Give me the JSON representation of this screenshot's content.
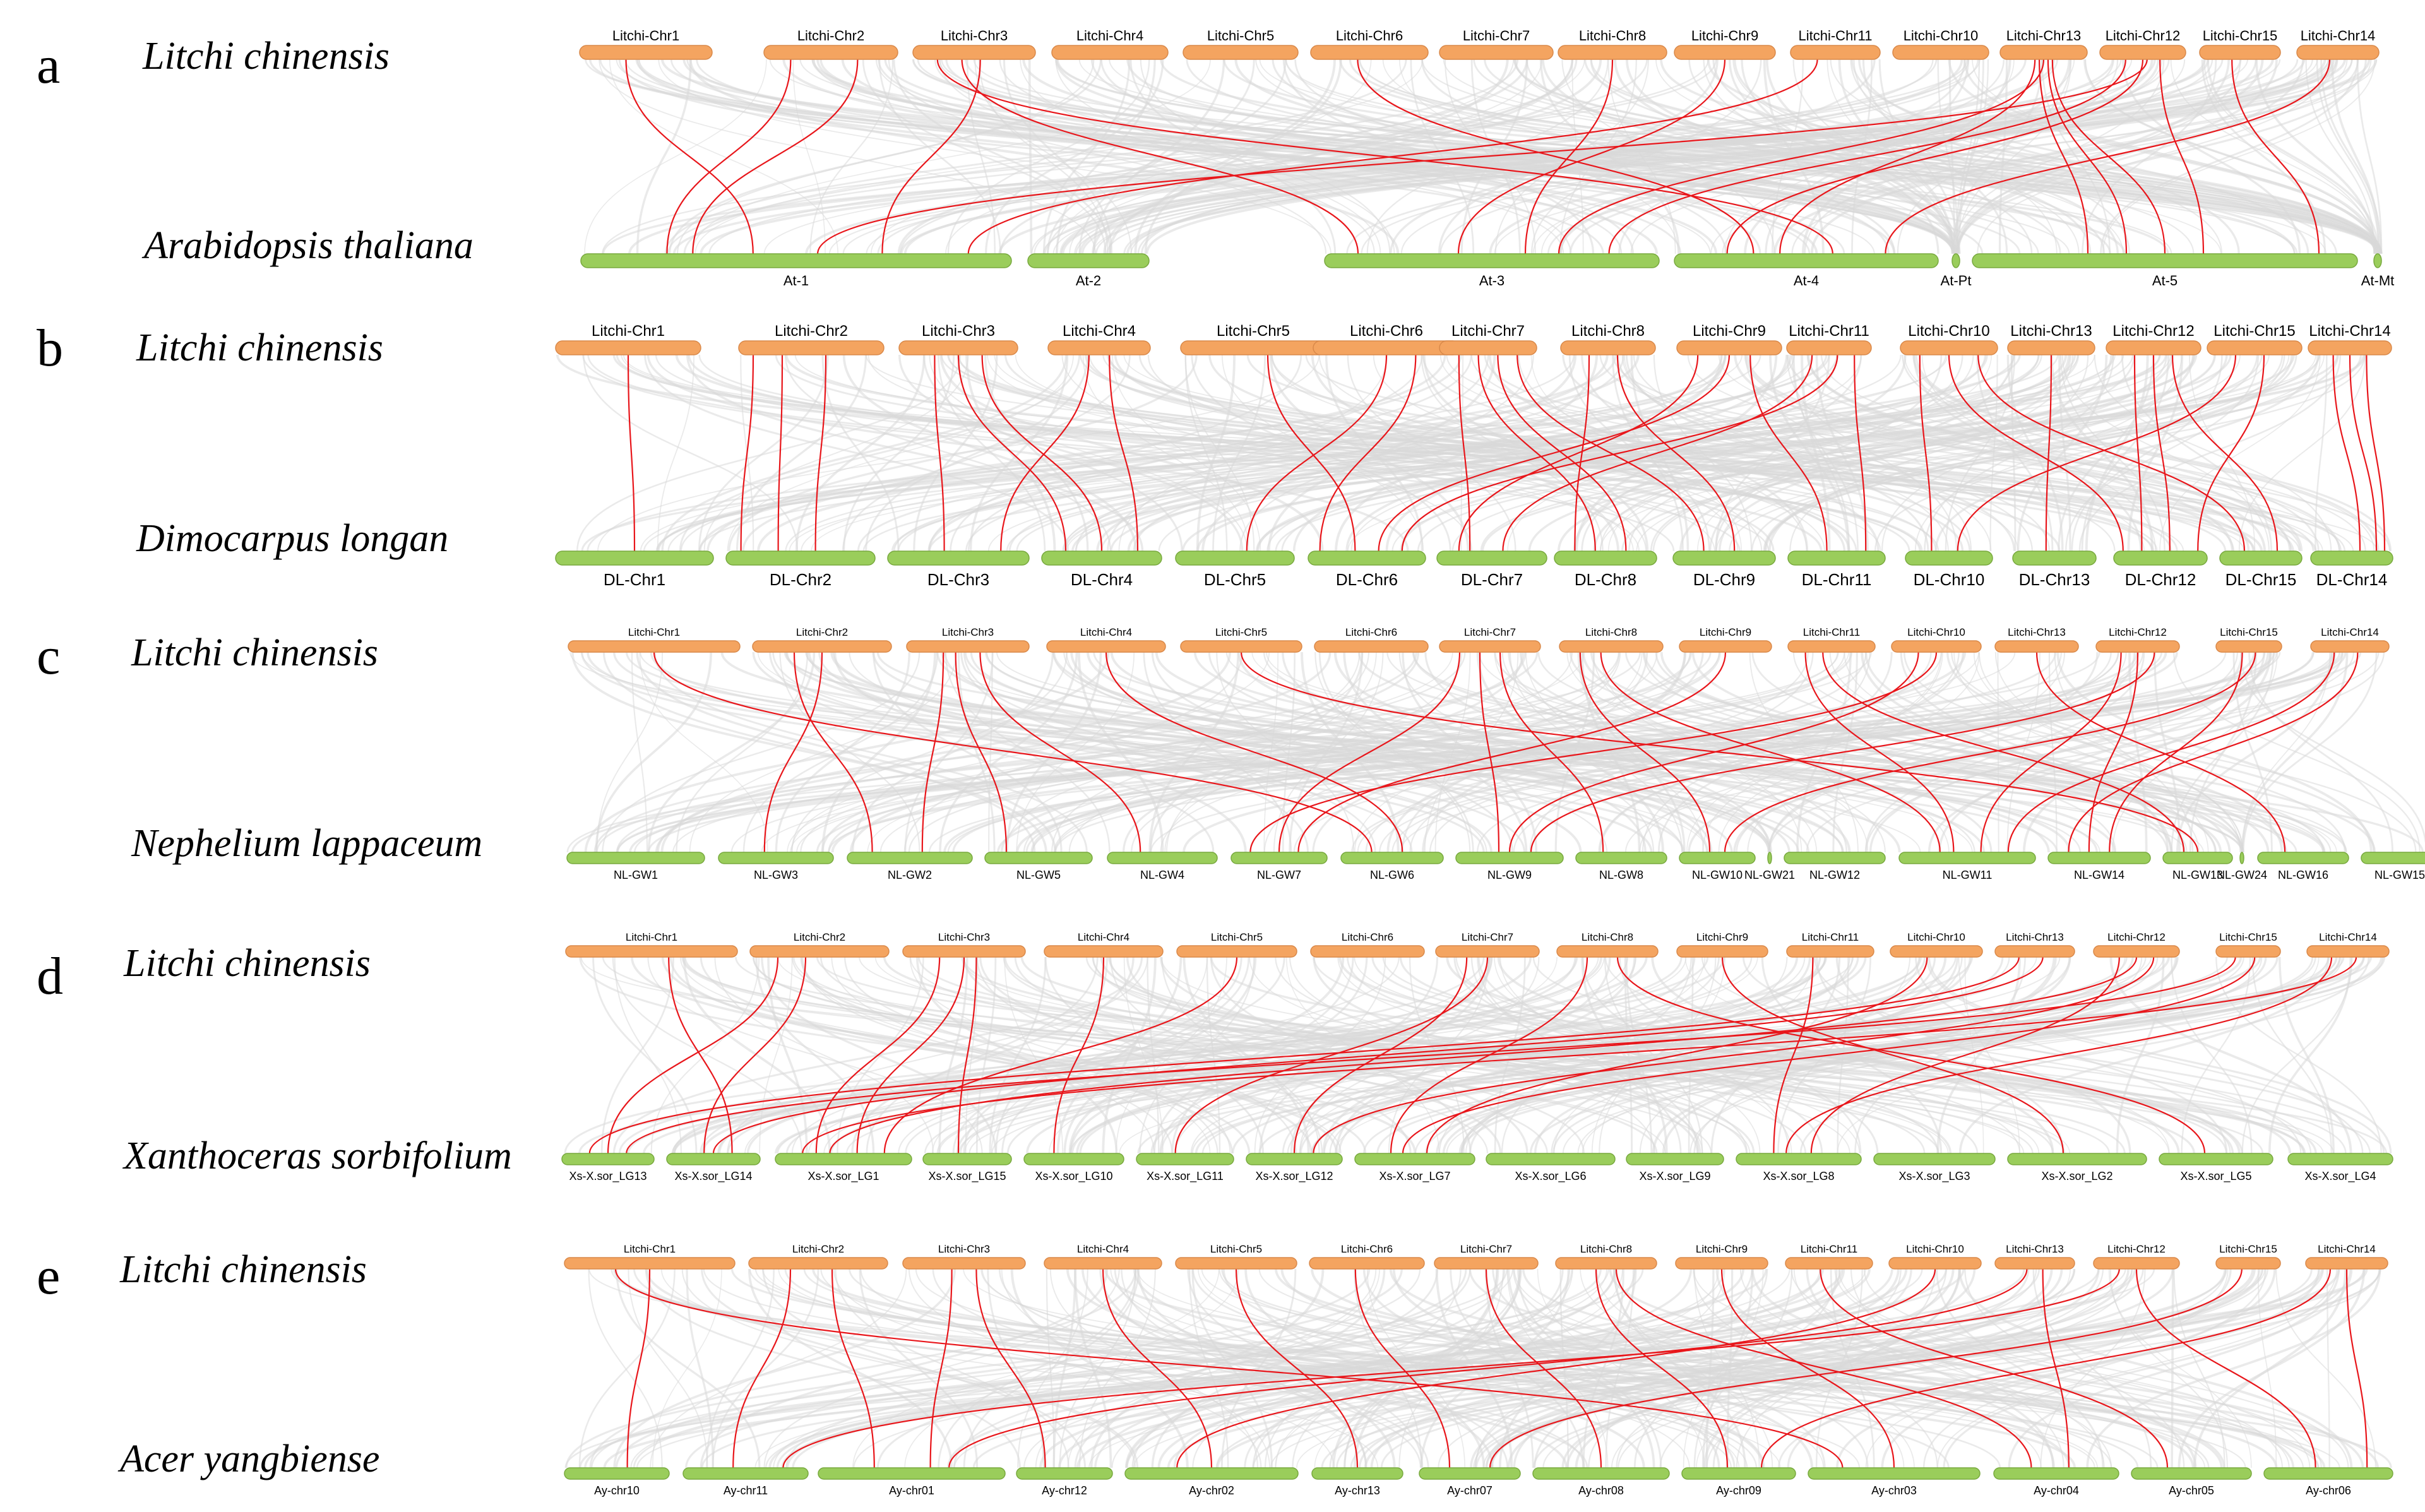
{
  "colors": {
    "top_bar": "#f4a460",
    "top_bar_stroke": "#d9894a",
    "bottom_bar": "#9acd5b",
    "bottom_bar_stroke": "#78a93e",
    "background_link": "#d8d8d8",
    "highlight_link": "#e8161b"
  },
  "panels": [
    {
      "letter": "a",
      "top_species": "Litchi chinensis",
      "bottom_species": "Arabidopsis thaliana",
      "top_chromosomes": [
        "Litchi-Chr1",
        "Litchi-Chr2",
        "Litchi-Chr3",
        "Litchi-Chr4",
        "Litchi-Chr5",
        "Litchi-Chr6",
        "Litchi-Chr7",
        "Litchi-Chr8",
        "Litchi-Chr9",
        "Litchi-Chr11",
        "Litchi-Chr10",
        "Litchi-Chr13",
        "Litchi-Chr12",
        "Litchi-Chr15",
        "Litchi-Chr14"
      ],
      "bottom_chromosomes": [
        "At-1",
        "At-2",
        "At-3",
        "At-4",
        "At-Pt",
        "At-5",
        "At-Mt"
      ]
    },
    {
      "letter": "b",
      "top_species": "Litchi chinensis",
      "bottom_species": "Dimocarpus longan",
      "top_chromosomes": [
        "Litchi-Chr1",
        "Litchi-Chr2",
        "Litchi-Chr3",
        "Litchi-Chr4",
        "Litchi-Chr5",
        "Litchi-Chr6",
        "Litchi-Chr7",
        "Litchi-Chr8",
        "Litchi-Chr9",
        "Litchi-Chr11",
        "Litchi-Chr10",
        "Litchi-Chr13",
        "Litchi-Chr12",
        "Litchi-Chr15",
        "Litchi-Chr14"
      ],
      "bottom_chromosomes": [
        "DL-Chr1",
        "DL-Chr2",
        "DL-Chr3",
        "DL-Chr4",
        "DL-Chr5",
        "DL-Chr6",
        "DL-Chr7",
        "DL-Chr8",
        "DL-Chr9",
        "DL-Chr11",
        "DL-Chr10",
        "DL-Chr13",
        "DL-Chr12",
        "DL-Chr15",
        "DL-Chr14"
      ]
    },
    {
      "letter": "c",
      "top_species": "Litchi chinensis",
      "bottom_species": "Nephelium lappaceum",
      "top_chromosomes": [
        "Litchi-Chr1",
        "Litchi-Chr2",
        "Litchi-Chr3",
        "Litchi-Chr4",
        "Litchi-Chr5",
        "Litchi-Chr6",
        "Litchi-Chr7",
        "Litchi-Chr8",
        "Litchi-Chr9",
        "Litchi-Chr11",
        "Litchi-Chr10",
        "Litchi-Chr13",
        "Litchi-Chr12",
        "Litchi-Chr15",
        "Litchi-Chr14"
      ],
      "bottom_chromosomes": [
        "NL-GW1",
        "NL-GW3",
        "NL-GW2",
        "NL-GW5",
        "NL-GW4",
        "NL-GW7",
        "NL-GW6",
        "NL-GW9",
        "NL-GW8",
        "NL-GW10",
        "NL-GW21",
        "NL-GW12",
        "NL-GW11",
        "NL-GW14",
        "NL-GW13",
        "NL-GW24",
        "NL-GW16",
        "NL-GW15"
      ]
    },
    {
      "letter": "d",
      "top_species": "Litchi chinensis",
      "bottom_species": "Xanthoceras sorbifolium",
      "top_chromosomes": [
        "Litchi-Chr1",
        "Litchi-Chr2",
        "Litchi-Chr3",
        "Litchi-Chr4",
        "Litchi-Chr5",
        "Litchi-Chr6",
        "Litchi-Chr7",
        "Litchi-Chr8",
        "Litchi-Chr9",
        "Litchi-Chr11",
        "Litchi-Chr10",
        "Litchi-Chr13",
        "Litchi-Chr12",
        "Litchi-Chr15",
        "Litchi-Chr14"
      ],
      "bottom_chromosomes": [
        "Xs-X.sor_LG13",
        "Xs-X.sor_LG14",
        "Xs-X.sor_LG1",
        "Xs-X.sor_LG15",
        "Xs-X.sor_LG10",
        "Xs-X.sor_LG11",
        "Xs-X.sor_LG12",
        "Xs-X.sor_LG7",
        "Xs-X.sor_LG6",
        "Xs-X.sor_LG9",
        "Xs-X.sor_LG8",
        "Xs-X.sor_LG3",
        "Xs-X.sor_LG2",
        "Xs-X.sor_LG5",
        "Xs-X.sor_LG4"
      ]
    },
    {
      "letter": "e",
      "top_species": "Litchi chinensis",
      "bottom_species": "Acer yangbiense",
      "top_chromosomes": [
        "Litchi-Chr1",
        "Litchi-Chr2",
        "Litchi-Chr3",
        "Litchi-Chr4",
        "Litchi-Chr5",
        "Litchi-Chr6",
        "Litchi-Chr7",
        "Litchi-Chr8",
        "Litchi-Chr9",
        "Litchi-Chr11",
        "Litchi-Chr10",
        "Litchi-Chr13",
        "Litchi-Chr12",
        "Litchi-Chr15",
        "Litchi-Chr14"
      ],
      "bottom_chromosomes": [
        "Ay-chr10",
        "Ay-chr11",
        "Ay-chr01",
        "Ay-chr12",
        "Ay-chr02",
        "Ay-chr13",
        "Ay-chr07",
        "Ay-chr08",
        "Ay-chr09",
        "Ay-chr03",
        "Ay-chr04",
        "Ay-chr05",
        "Ay-chr06"
      ]
    }
  ]
}
